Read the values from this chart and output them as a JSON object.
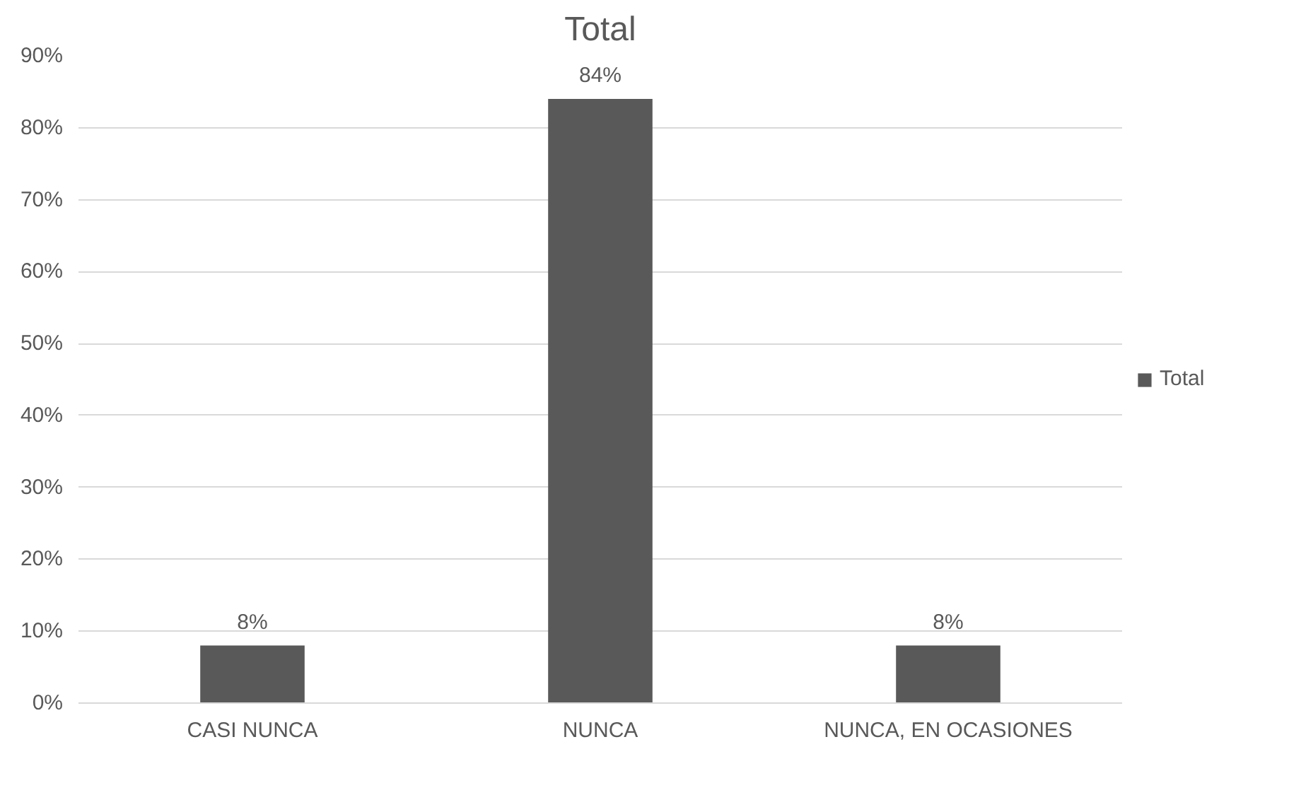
{
  "chart_data": {
    "type": "bar",
    "title": "Total",
    "categories": [
      "CASI NUNCA",
      "NUNCA",
      "NUNCA, EN OCASIONES"
    ],
    "series": [
      {
        "name": "Total",
        "color": "#595959",
        "values": [
          8,
          84,
          8
        ],
        "value_labels": [
          "8%",
          "84%",
          "8%"
        ]
      }
    ],
    "ylim": [
      0,
      90
    ],
    "yticks": [
      {
        "value": 0,
        "label": "0%"
      },
      {
        "value": 10,
        "label": "10%"
      },
      {
        "value": 20,
        "label": "20%"
      },
      {
        "value": 30,
        "label": "30%"
      },
      {
        "value": 40,
        "label": "40%"
      },
      {
        "value": 50,
        "label": "50%"
      },
      {
        "value": 60,
        "label": "60%"
      },
      {
        "value": 70,
        "label": "70%"
      },
      {
        "value": 80,
        "label": "80%"
      },
      {
        "value": 90,
        "label": "90%"
      }
    ],
    "grid": "y",
    "legend": "right"
  }
}
